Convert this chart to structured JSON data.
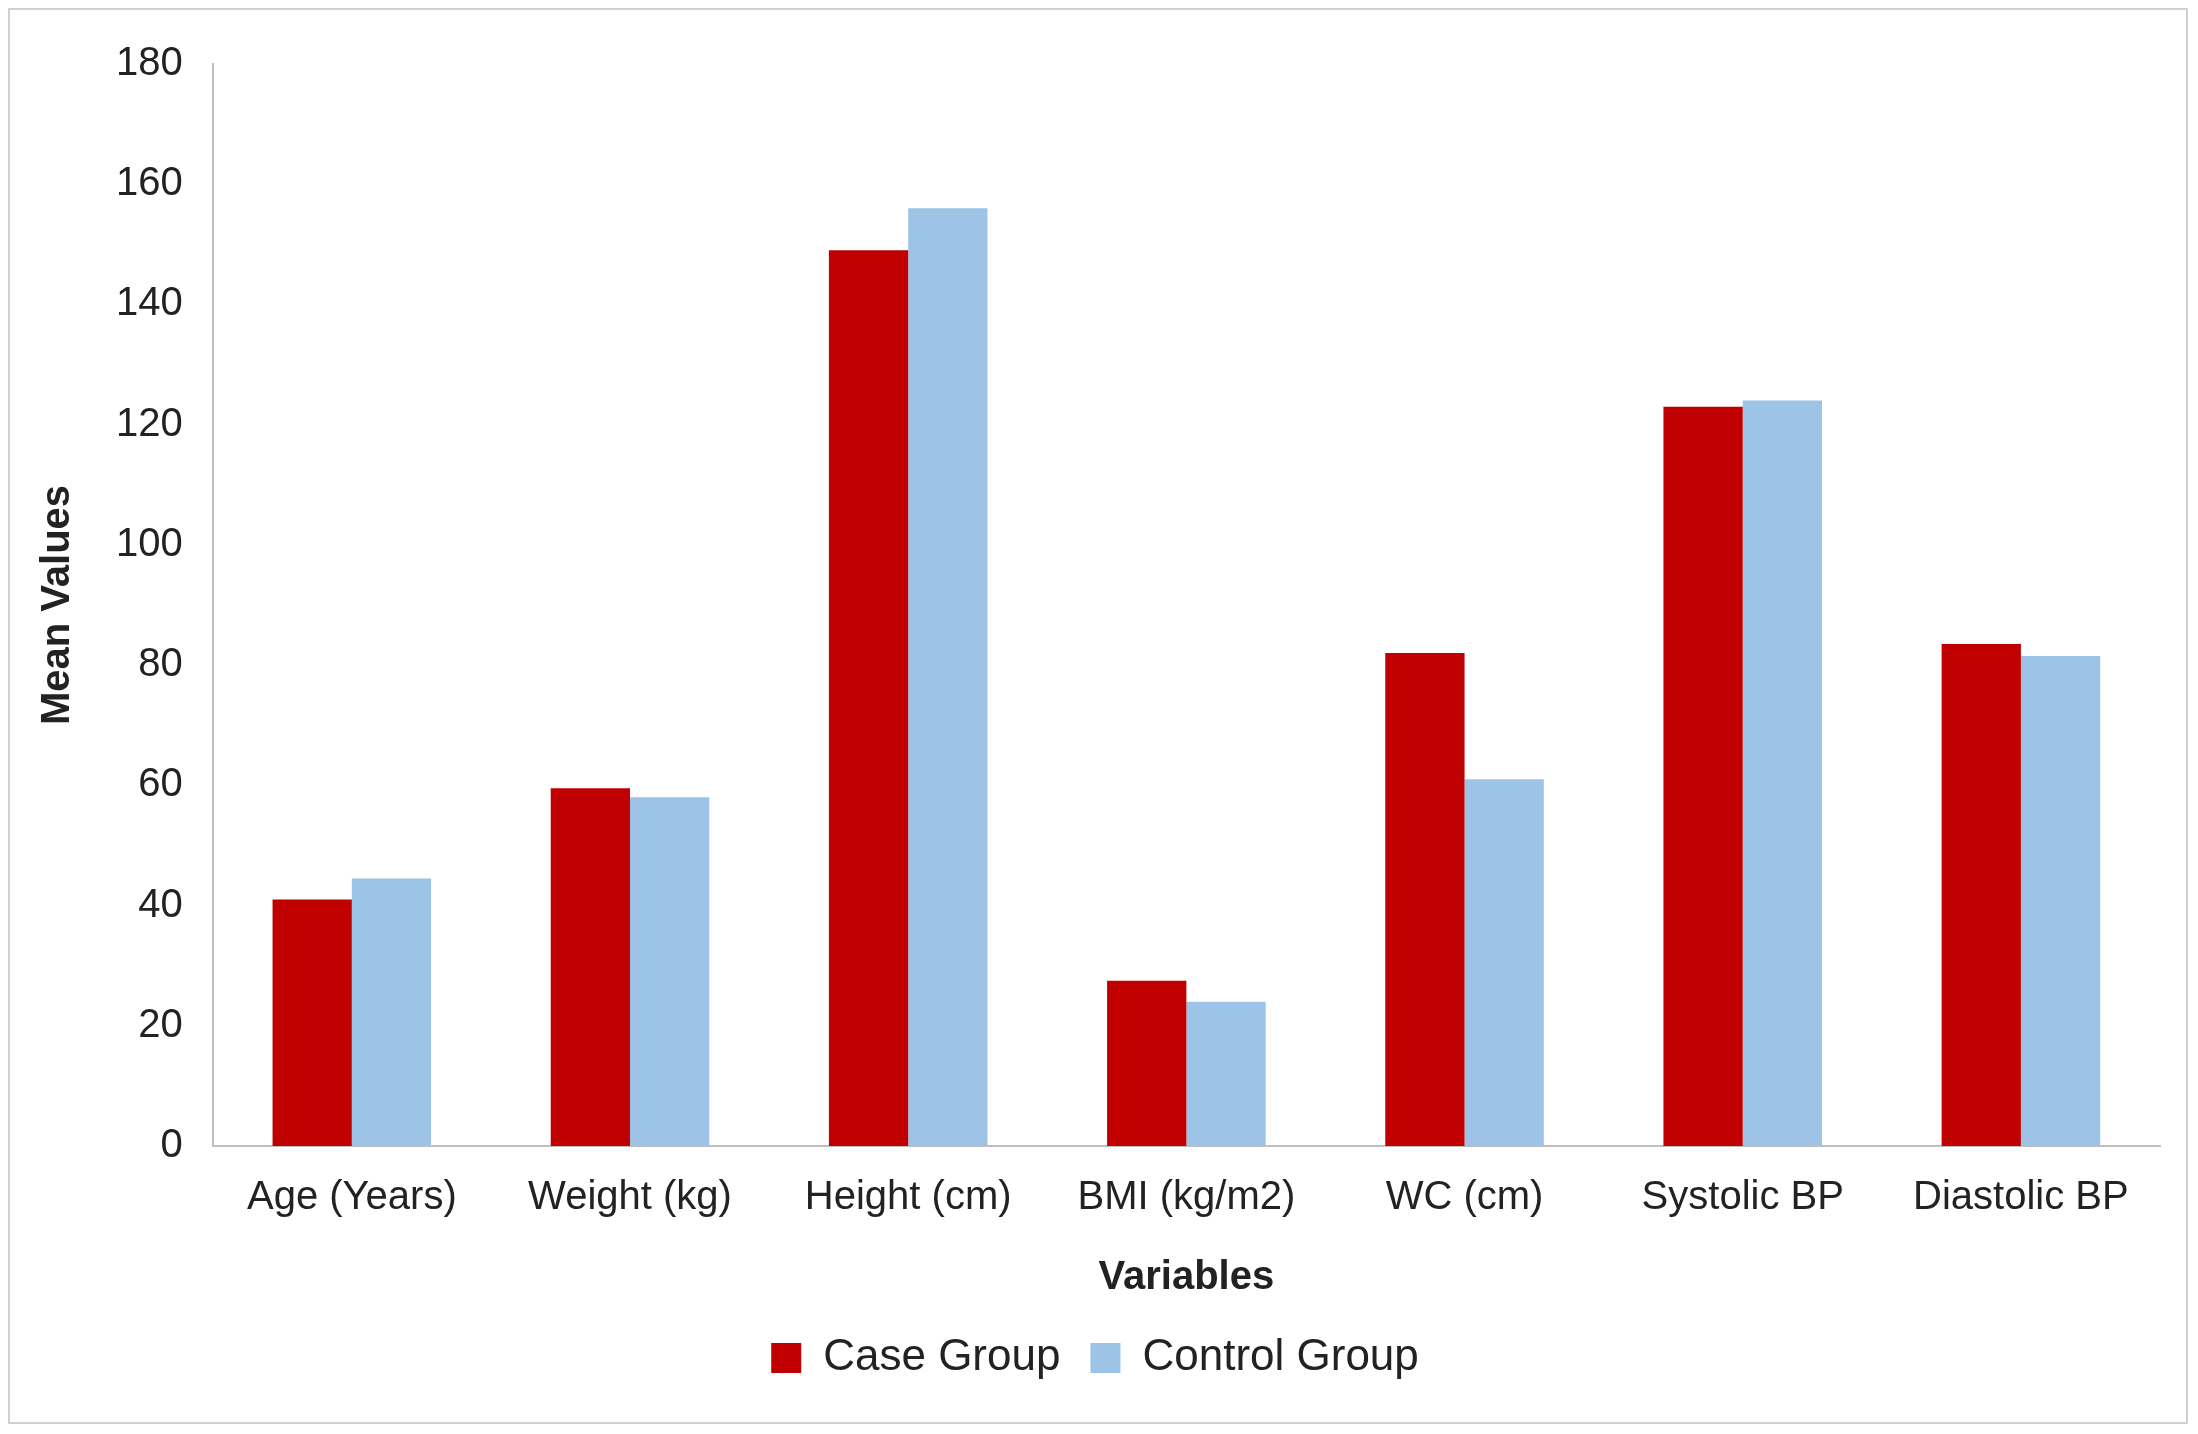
{
  "chart_data": {
    "type": "bar",
    "xlabel": "Variables",
    "ylabel": "Mean Values",
    "categories": [
      "Age (Years)",
      "Weight (kg)",
      "Height (cm)",
      "BMI (kg/m2)",
      "WC (cm)",
      "Systolic BP",
      "Diastolic BP"
    ],
    "series": [
      {
        "name": "Case Group",
        "color": "#c00000",
        "values": [
          41,
          59.5,
          149,
          27.5,
          82,
          123,
          83.5
        ]
      },
      {
        "name": "Control Group",
        "color": "#9dc3e6",
        "values": [
          44.5,
          58,
          156,
          24,
          61,
          124,
          81.5
        ]
      }
    ],
    "ylim": [
      0,
      180
    ],
    "yticks": [
      0,
      20,
      40,
      60,
      80,
      100,
      120,
      140,
      160,
      180
    ],
    "grid": false,
    "legend": "bottom"
  }
}
